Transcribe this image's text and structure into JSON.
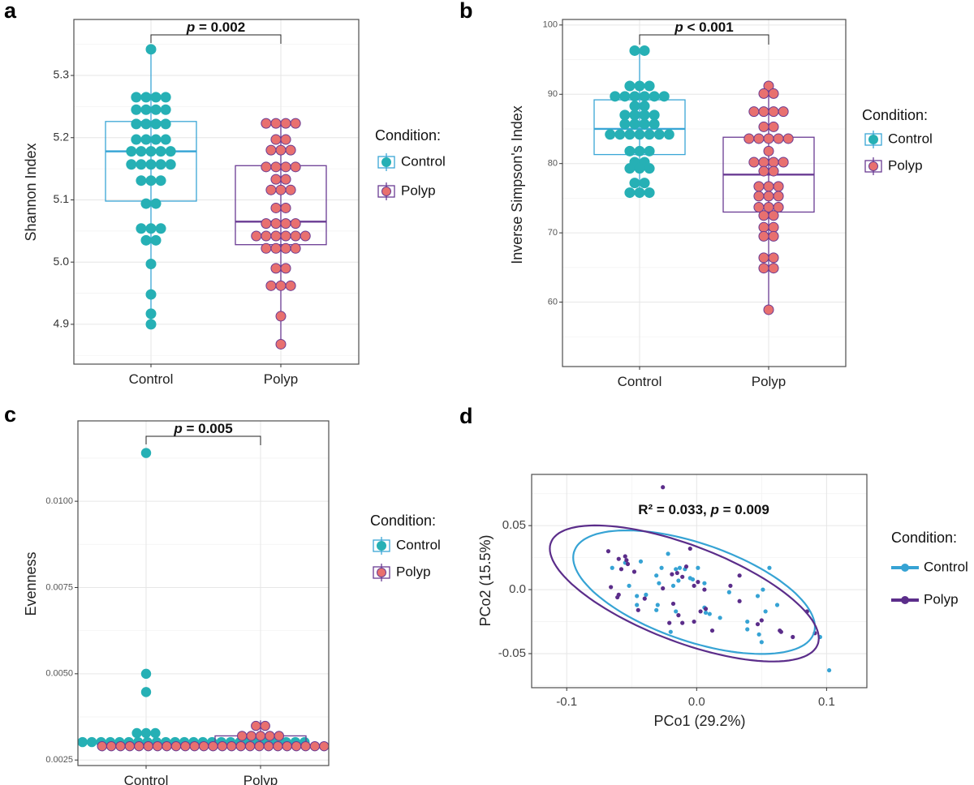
{
  "colors": {
    "control_fill": "#26b0b5",
    "control_line": "#3aa6d6",
    "polyp_fill": "#e8706f",
    "polyp_line": "#6a3b93",
    "control_scatter": "#36a3d4",
    "polyp_scatter": "#5b2d8a",
    "panel_border": "#4d4d4d",
    "grid_major": "#e6e6e6",
    "grid_minor": "#f3f3f3"
  },
  "chart_data": [
    {
      "panel_label": "a",
      "type": "box+dotplot",
      "xlabel": "",
      "ylabel": "Shannon Index",
      "categories": [
        "Control",
        "Polyp"
      ],
      "ylim": [
        4.836,
        5.39
      ],
      "y_ticks": [
        "4.9",
        "5.0",
        "5.1",
        "5.2",
        "5.3"
      ],
      "grid": true,
      "annotation": {
        "prefix": "",
        "symbol": "p",
        "text": " = 0.002"
      },
      "legend": {
        "title": "Condition:",
        "position": "right",
        "entries": [
          "Control",
          "Polyp"
        ]
      },
      "series": [
        {
          "name": "Control",
          "box": {
            "min": 4.9,
            "q1": 5.098,
            "median": 5.178,
            "q3": 5.226,
            "max": 5.342
          },
          "dots_value_count": [
            [
              5.342,
              1
            ],
            [
              5.265,
              4
            ],
            [
              5.245,
              4
            ],
            [
              5.222,
              4
            ],
            [
              5.197,
              4
            ],
            [
              5.178,
              5
            ],
            [
              5.157,
              5
            ],
            [
              5.131,
              3
            ],
            [
              5.094,
              2
            ],
            [
              5.054,
              3
            ],
            [
              5.035,
              2
            ],
            [
              4.997,
              1
            ],
            [
              4.948,
              1
            ],
            [
              4.917,
              1
            ],
            [
              4.9,
              1
            ]
          ]
        },
        {
          "name": "Polyp",
          "box": {
            "min": 4.868,
            "q1": 5.028,
            "median": 5.065,
            "q3": 5.155,
            "max": 5.223
          },
          "dots_value_count": [
            [
              5.223,
              4
            ],
            [
              5.197,
              2
            ],
            [
              5.18,
              3
            ],
            [
              5.153,
              4
            ],
            [
              5.133,
              2
            ],
            [
              5.116,
              3
            ],
            [
              5.087,
              2
            ],
            [
              5.062,
              4
            ],
            [
              5.042,
              6
            ],
            [
              5.022,
              4
            ],
            [
              4.99,
              2
            ],
            [
              4.962,
              3
            ],
            [
              4.913,
              1
            ],
            [
              4.868,
              1
            ]
          ]
        }
      ]
    },
    {
      "panel_label": "b",
      "type": "box+dotplot",
      "xlabel": "",
      "ylabel": "Inverse Simpson's Index",
      "categories": [
        "Control",
        "Polyp"
      ],
      "ylim": [
        50.7,
        100.8
      ],
      "y_ticks": [
        "60",
        "70",
        "80",
        "90",
        "100"
      ],
      "grid": true,
      "annotation": {
        "prefix": "",
        "symbol": "p",
        "text": " <  0.001"
      },
      "legend": {
        "title": "Condition:",
        "position": "right",
        "entries": [
          "Control",
          "Polyp"
        ]
      },
      "series": [
        {
          "name": "Control",
          "box": {
            "min": 75.8,
            "q1": 81.3,
            "median": 85.0,
            "q3": 89.2,
            "max": 96.3
          },
          "dots_value_count": [
            [
              96.3,
              2
            ],
            [
              91.2,
              3
            ],
            [
              89.7,
              6
            ],
            [
              88.3,
              2
            ],
            [
              87.0,
              4
            ],
            [
              85.7,
              4
            ],
            [
              84.2,
              7
            ],
            [
              81.8,
              3
            ],
            [
              80.2,
              2
            ],
            [
              79.3,
              3
            ],
            [
              77.2,
              2
            ],
            [
              75.8,
              3
            ]
          ]
        },
        {
          "name": "Polyp",
          "box": {
            "min": 58.9,
            "q1": 73.0,
            "median": 78.4,
            "q3": 83.8,
            "max": 91.2
          },
          "dots_value_count": [
            [
              91.2,
              1
            ],
            [
              90.1,
              2
            ],
            [
              87.5,
              4
            ],
            [
              85.3,
              2
            ],
            [
              83.6,
              5
            ],
            [
              81.8,
              1
            ],
            [
              80.2,
              4
            ],
            [
              78.9,
              2
            ],
            [
              76.7,
              3
            ],
            [
              75.3,
              3
            ],
            [
              73.7,
              3
            ],
            [
              72.5,
              2
            ],
            [
              70.8,
              2
            ],
            [
              69.5,
              2
            ],
            [
              66.4,
              2
            ],
            [
              64.9,
              2
            ],
            [
              58.9,
              1
            ]
          ]
        }
      ]
    },
    {
      "panel_label": "c",
      "type": "box+dotplot",
      "xlabel": "",
      "ylabel": "Evenness",
      "categories": [
        "Control",
        "Polyp"
      ],
      "ylim": [
        0.00234,
        0.01233
      ],
      "y_ticks": [
        "0.0025",
        "0.0050",
        "0.0075",
        "0.0100"
      ],
      "grid": true,
      "annotation": {
        "prefix": "",
        "symbol": "p",
        "text": " = 0.005"
      },
      "legend": {
        "title": "Condition:",
        "position": "right",
        "entries": [
          "Control",
          "Polyp"
        ]
      },
      "series": [
        {
          "name": "Control",
          "box": {
            "min": 0.00302,
            "q1": 0.00302,
            "median": 0.00302,
            "q3": 0.00302,
            "max": 0.00302
          },
          "dots_value_count": [
            [
              0.0114,
              1
            ],
            [
              0.005,
              1
            ],
            [
              0.00447,
              1
            ],
            [
              0.00328,
              3
            ],
            [
              0.00302,
              25
            ]
          ]
        },
        {
          "name": "Polyp",
          "box": {
            "min": 0.0029,
            "q1": 0.0029,
            "median": 0.0029,
            "q3": 0.0032,
            "max": 0.00365
          },
          "dots_value_count": [
            [
              0.00349,
              2
            ],
            [
              0.0032,
              5
            ],
            [
              0.0029,
              25
            ]
          ]
        }
      ]
    },
    {
      "panel_label": "d",
      "type": "scatter",
      "xlabel": "PCo1 (29.2%)",
      "ylabel": "PCo2 (15.5%)",
      "xlim": [
        -0.127,
        0.131
      ],
      "ylim": [
        -0.0766,
        0.09
      ],
      "x_ticks": [
        "-0.1",
        "0.0",
        "0.1"
      ],
      "y_ticks": [
        "-0.05",
        "0.0",
        "0.05"
      ],
      "grid": true,
      "annotation": {
        "prefix": "R² = 0.033, ",
        "symbol": "p",
        "text": " = 0.009"
      },
      "legend": {
        "title": "Condition:",
        "position": "right",
        "entries": [
          "Control",
          "Polyp"
        ]
      },
      "series": [
        {
          "name": "Control",
          "ellipse": {
            "center": [
              -0.002,
              -0.002
            ],
            "axis1": [
              0.093,
              -0.027
            ],
            "axis2": [
              0,
              0.04
            ]
          },
          "points": [
            [
              -0.065,
              0.017
            ],
            [
              -0.055,
              0.021
            ],
            [
              -0.043,
              0.022
            ],
            [
              -0.052,
              0.003
            ],
            [
              -0.046,
              -0.005
            ],
            [
              -0.046,
              -0.012
            ],
            [
              -0.039,
              -0.004
            ],
            [
              -0.031,
              0.011
            ],
            [
              -0.029,
              0.005
            ],
            [
              -0.027,
              0.017
            ],
            [
              -0.022,
              0.028
            ],
            [
              -0.03,
              -0.012
            ],
            [
              -0.031,
              -0.016
            ],
            [
              -0.02,
              -0.033
            ],
            [
              -0.016,
              -0.017
            ],
            [
              -0.018,
              0.003
            ],
            [
              -0.014,
              0.007
            ],
            [
              -0.016,
              0.016
            ],
            [
              -0.013,
              0.017
            ],
            [
              -0.009,
              0.016
            ],
            [
              -0.005,
              0.009
            ],
            [
              -0.003,
              0.008
            ],
            [
              0.001,
              0.017
            ],
            [
              0.006,
              0.005
            ],
            [
              0.006,
              -0.014
            ],
            [
              0.007,
              -0.018
            ],
            [
              0.01,
              -0.019
            ],
            [
              0.018,
              -0.022
            ],
            [
              0.025,
              -0.002
            ],
            [
              0.039,
              -0.025
            ],
            [
              0.039,
              -0.031
            ],
            [
              0.047,
              -0.005
            ],
            [
              0.048,
              -0.035
            ],
            [
              0.05,
              -0.041
            ],
            [
              0.051,
              0.0
            ],
            [
              0.053,
              -0.017
            ],
            [
              0.056,
              0.017
            ],
            [
              0.062,
              -0.012
            ],
            [
              0.095,
              -0.037
            ],
            [
              0.102,
              -0.063
            ]
          ]
        },
        {
          "name": "Polyp",
          "ellipse": {
            "center": [
              -0.0095,
              -0.003
            ],
            "axis1": [
              0.1035,
              -0.035
            ],
            "axis2": [
              0,
              0.04
            ]
          },
          "points": [
            [
              -0.026,
              0.08
            ],
            [
              -0.068,
              0.03
            ],
            [
              -0.06,
              0.024
            ],
            [
              -0.055,
              0.026
            ],
            [
              -0.054,
              0.023
            ],
            [
              -0.053,
              0.02
            ],
            [
              -0.058,
              0.016
            ],
            [
              -0.048,
              0.014
            ],
            [
              -0.066,
              0.002
            ],
            [
              -0.06,
              -0.004
            ],
            [
              -0.061,
              -0.006
            ],
            [
              -0.045,
              -0.016
            ],
            [
              -0.04,
              -0.007
            ],
            [
              -0.026,
              0.001
            ],
            [
              -0.019,
              0.012
            ],
            [
              -0.015,
              0.013
            ],
            [
              -0.011,
              0.01
            ],
            [
              -0.008,
              0.018
            ],
            [
              -0.005,
              0.032
            ],
            [
              -0.002,
              0.003
            ],
            [
              0.001,
              0.006
            ],
            [
              0.006,
              0.0
            ],
            [
              -0.018,
              -0.011
            ],
            [
              -0.014,
              -0.02
            ],
            [
              -0.021,
              -0.026
            ],
            [
              -0.011,
              -0.026
            ],
            [
              -0.002,
              -0.025
            ],
            [
              0.003,
              -0.017
            ],
            [
              0.007,
              -0.015
            ],
            [
              0.012,
              -0.032
            ],
            [
              0.026,
              0.003
            ],
            [
              0.033,
              0.011
            ],
            [
              0.033,
              -0.009
            ],
            [
              0.047,
              -0.027
            ],
            [
              0.05,
              -0.024
            ],
            [
              0.064,
              -0.032
            ],
            [
              0.065,
              -0.033
            ],
            [
              0.074,
              -0.037
            ],
            [
              0.085,
              -0.017
            ],
            [
              0.091,
              -0.034
            ]
          ]
        }
      ]
    }
  ]
}
